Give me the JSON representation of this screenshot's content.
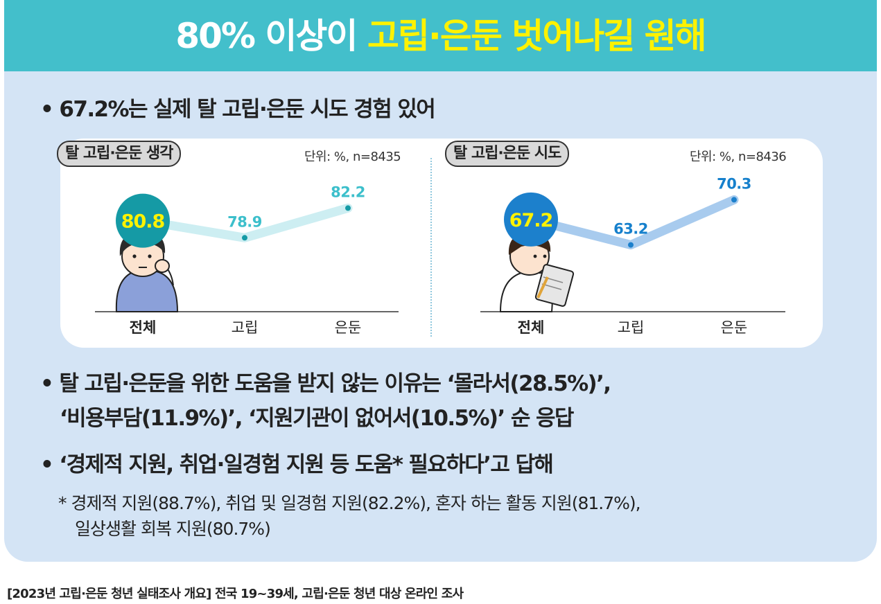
{
  "banner": {
    "title_prefix": "80% 이상이 ",
    "title_highlight": "고립·은둔 벗어나길 원해"
  },
  "bullet1": "• 67.2%는 실제 탈 고립·은둔 시도 경험 있어",
  "bullet2": {
    "line1": "• 탈 고립·은둔을 위한 도움을 받지 않는 이유는 ‘몰라서(28.5%)’,",
    "line2": "‘비용부담(11.9%)’, ‘지원기관이 없어서(10.5%)’ 순 응답"
  },
  "bullet3": "• ‘경제적 지원, 취업·일경험 지원 등 도움* 필요하다’고 답해",
  "footnote": {
    "line1": "* 경제적 지원(88.7%), 취업 및 일경험 지원(82.2%), 혼자 하는 활동 지원(81.7%),",
    "line2": "일상생활 회복 지원(80.7%)"
  },
  "footer": "[2023년 고립·은둔 청년 실태조사 개요] 전국 19~39세, 고립·은둔 청년 대상 온라인 조사",
  "colors": {
    "banner": "#43bfcb",
    "highlight": "#fff200",
    "panel": "#d4e4f5",
    "teal_circle": "#159aa5",
    "teal_text": "#3cbfcb",
    "teal_line": "#cdeef2",
    "blue_circle": "#1c80cc",
    "blue_text": "#1680cc",
    "blue_line": "#a8cbee"
  },
  "chart_data": [
    {
      "type": "line",
      "title": "탈 고립·은둔 생각",
      "unit_note": "단위: %, n=8435",
      "categories": [
        "전체",
        "고립",
        "은둔"
      ],
      "values": [
        80.8,
        78.9,
        82.2
      ],
      "labels": [
        "80.8",
        "78.9",
        "82.2"
      ]
    },
    {
      "type": "line",
      "title": "탈 고립·은둔 시도",
      "unit_note": "단위: %, n=8436",
      "categories": [
        "전체",
        "고립",
        "은둔"
      ],
      "values": [
        67.2,
        63.2,
        70.3
      ],
      "labels": [
        "67.2",
        "63.2",
        "70.3"
      ]
    }
  ]
}
